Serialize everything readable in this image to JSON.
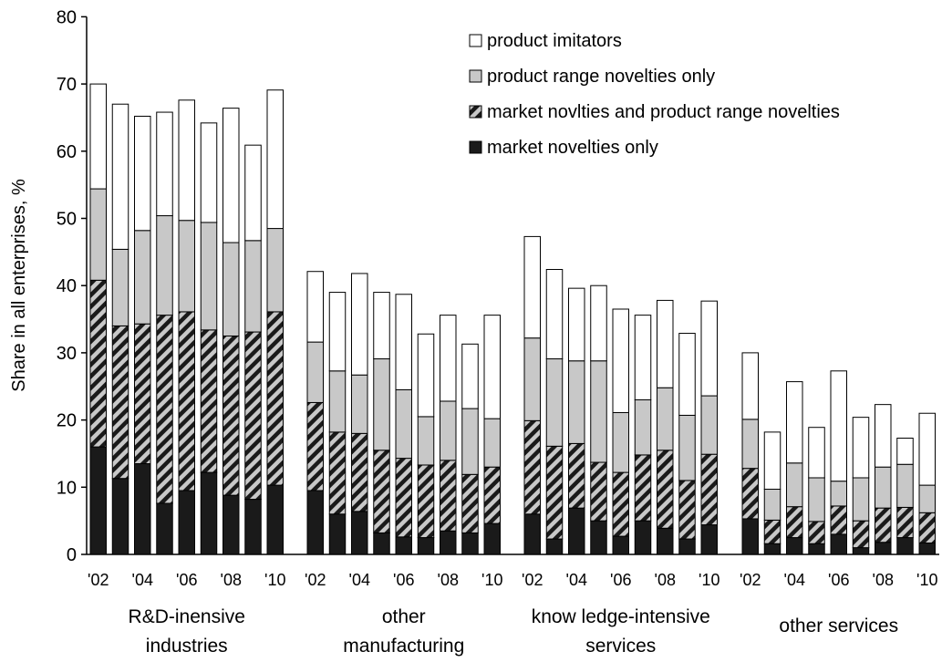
{
  "chart_data": {
    "type": "bar",
    "stacked": true,
    "title": "",
    "xlabel": "",
    "ylabel": "Share in all enterprises, %",
    "ylim": [
      0,
      80
    ],
    "yticks": [
      0,
      10,
      20,
      30,
      40,
      50,
      60,
      70,
      80
    ],
    "grid": false,
    "legend_position": "top-right",
    "x_tick_labels": [
      "'02",
      "",
      "'04",
      "",
      "'06",
      "",
      "'08",
      "",
      "'10"
    ],
    "groups": [
      {
        "name": "R&D-inensive industries",
        "label_lines": [
          "R&D-inensive",
          "industries"
        ],
        "years": [
          "2002",
          "2003",
          "2004",
          "2005",
          "2006",
          "2007",
          "2008",
          "2009",
          "2010"
        ],
        "market_novelties_only": [
          16.0,
          11.3,
          13.5,
          7.6,
          9.5,
          12.2,
          8.8,
          8.2,
          10.3
        ],
        "market_and_range": [
          24.8,
          22.7,
          20.8,
          28.0,
          26.6,
          21.2,
          23.7,
          24.9,
          25.8
        ],
        "range_only": [
          13.6,
          11.4,
          13.9,
          14.8,
          13.6,
          16.0,
          13.9,
          13.6,
          12.4
        ],
        "imitators": [
          15.6,
          21.6,
          17.0,
          15.4,
          17.9,
          14.8,
          20.0,
          14.2,
          20.6
        ]
      },
      {
        "name": "other manufacturing",
        "label_lines": [
          "other",
          "manufacturing"
        ],
        "years": [
          "2002",
          "2003",
          "2004",
          "2005",
          "2006",
          "2007",
          "2008",
          "2009",
          "2010"
        ],
        "market_novelties_only": [
          9.5,
          6.0,
          6.4,
          3.2,
          2.6,
          2.5,
          3.5,
          3.2,
          4.6
        ],
        "market_and_range": [
          13.1,
          12.2,
          11.6,
          12.3,
          11.7,
          10.8,
          10.5,
          8.7,
          8.4
        ],
        "range_only": [
          9.0,
          9.1,
          8.7,
          13.6,
          10.2,
          7.2,
          8.8,
          9.8,
          7.2
        ],
        "imitators": [
          10.5,
          11.7,
          15.1,
          9.9,
          14.2,
          12.3,
          12.8,
          9.6,
          15.4
        ]
      },
      {
        "name": "know ledge-intensive services",
        "label_lines": [
          "know ledge-intensive",
          "services"
        ],
        "years": [
          "2002",
          "2003",
          "2004",
          "2005",
          "2006",
          "2007",
          "2008",
          "2009",
          "2010"
        ],
        "market_novelties_only": [
          6.0,
          2.3,
          6.9,
          5.0,
          2.7,
          5.0,
          3.9,
          2.3,
          4.4
        ],
        "market_and_range": [
          13.9,
          13.8,
          9.6,
          8.7,
          9.5,
          9.8,
          11.6,
          8.7,
          10.5
        ],
        "range_only": [
          12.3,
          13.0,
          12.3,
          15.1,
          8.9,
          8.2,
          9.3,
          9.7,
          8.7
        ],
        "imitators": [
          15.1,
          13.3,
          10.8,
          11.2,
          15.4,
          12.6,
          13.0,
          12.2,
          14.1
        ]
      },
      {
        "name": "other services",
        "label_lines": [
          "other services"
        ],
        "years": [
          "2002",
          "2003",
          "2004",
          "2005",
          "2006",
          "2007",
          "2008",
          "2009",
          "2010"
        ],
        "market_novelties_only": [
          5.3,
          1.6,
          2.5,
          1.6,
          3.0,
          1.0,
          1.8,
          2.5,
          1.7
        ],
        "market_and_range": [
          7.5,
          3.5,
          4.6,
          3.3,
          4.2,
          4.0,
          5.1,
          4.5,
          4.5
        ],
        "range_only": [
          7.3,
          4.6,
          6.5,
          6.5,
          3.7,
          6.4,
          6.1,
          6.4,
          4.1
        ],
        "imitators": [
          9.9,
          8.5,
          12.1,
          7.5,
          16.4,
          9.0,
          9.3,
          3.9,
          10.7
        ]
      }
    ],
    "series": [
      {
        "key": "imitators",
        "name": "product imitators",
        "color": "#ffffff",
        "pattern": "none"
      },
      {
        "key": "range_only",
        "name": "product range novelties only",
        "color": "#c8c8c8",
        "pattern": "none"
      },
      {
        "key": "market_and_range",
        "name": "market novlties and product range novelties",
        "color": "#c8c8c8",
        "pattern": "diagonal-hatch"
      },
      {
        "key": "market_novelties_only",
        "name": "market novelties only",
        "color": "#1a1a1a",
        "pattern": "none"
      }
    ]
  }
}
